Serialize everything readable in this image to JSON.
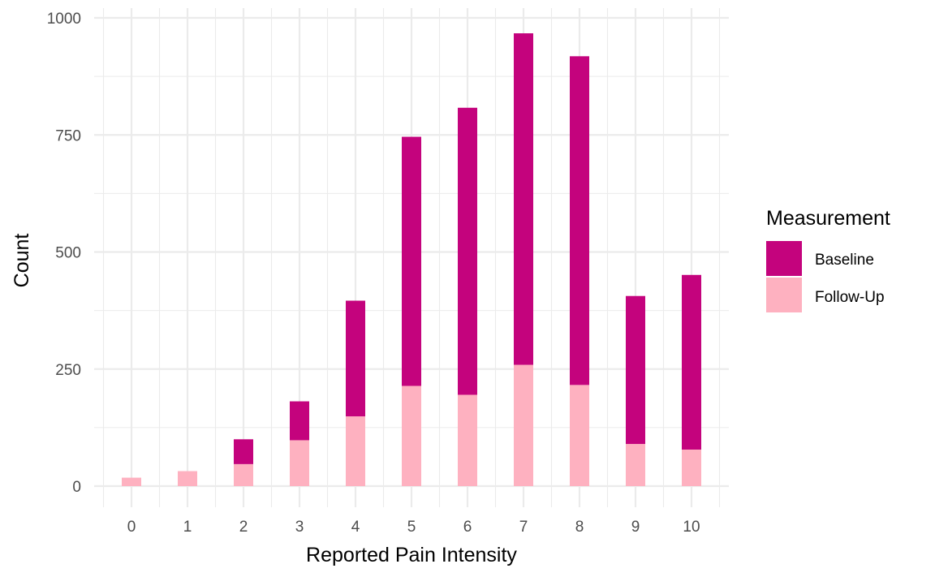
{
  "chart_data": {
    "type": "bar",
    "stacked": true,
    "xlabel": "Reported Pain Intensity",
    "ylabel": "Count",
    "categories": [
      "0",
      "1",
      "2",
      "3",
      "4",
      "5",
      "6",
      "7",
      "8",
      "9",
      "10"
    ],
    "ylim": [
      0,
      1000
    ],
    "yticks": [
      "0",
      "250",
      "500",
      "750",
      "1000"
    ],
    "grid": true,
    "legend": {
      "title": "Measurement",
      "position": "right"
    },
    "series": [
      {
        "name": "Baseline",
        "color": "#c4037d",
        "values": [
          0,
          0,
          53,
          83,
          247,
          532,
          613,
          708,
          702,
          316,
          373
        ]
      },
      {
        "name": "Follow-Up",
        "color": "#feb1c0",
        "values": [
          18,
          32,
          47,
          98,
          149,
          214,
          195,
          259,
          216,
          90,
          78
        ]
      }
    ]
  }
}
